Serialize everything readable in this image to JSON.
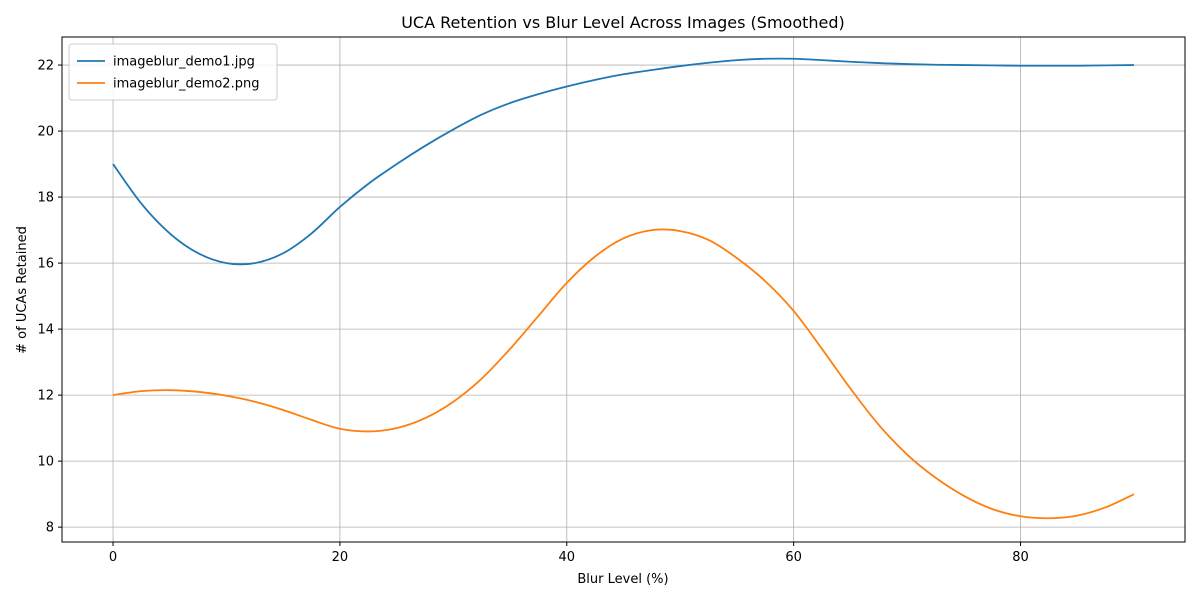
{
  "chart_data": {
    "type": "line",
    "title": "UCA Retention vs Blur Level Across Images (Smoothed)",
    "xlabel": "Blur Level (%)",
    "ylabel": "# of UCAs Retained",
    "xlim": [
      -4.5,
      94.5
    ],
    "ylim": [
      7.55,
      22.85
    ],
    "xticks": [
      0,
      20,
      40,
      60,
      80
    ],
    "yticks": [
      8,
      10,
      12,
      14,
      16,
      18,
      20,
      22
    ],
    "grid": true,
    "legend_position": "top-left",
    "series": [
      {
        "name": "imageblur_demo1.jpg",
        "color": "#1f77b4",
        "x": [
          0,
          2.5,
          5,
          7.5,
          10,
          12.5,
          15,
          17.5,
          20,
          22.5,
          25,
          27.5,
          30,
          32.5,
          35,
          37.5,
          40,
          42.5,
          45,
          47.5,
          50,
          52.5,
          55,
          57.5,
          60,
          62.5,
          65,
          67.5,
          70,
          72.5,
          75,
          77.5,
          80,
          82.5,
          85,
          87.5,
          90
        ],
        "y": [
          19.0,
          17.8,
          16.9,
          16.3,
          16.0,
          16.0,
          16.3,
          16.9,
          17.7,
          18.4,
          19.0,
          19.55,
          20.05,
          20.5,
          20.85,
          21.12,
          21.35,
          21.55,
          21.72,
          21.85,
          21.97,
          22.07,
          22.15,
          22.19,
          22.19,
          22.15,
          22.1,
          22.06,
          22.03,
          22.01,
          22.0,
          21.99,
          21.98,
          21.98,
          21.98,
          21.99,
          22.0
        ]
      },
      {
        "name": "imageblur_demo2.png",
        "color": "#ff7f0e",
        "x": [
          0,
          2.5,
          5,
          7.5,
          10,
          12.5,
          15,
          17.5,
          20,
          22.5,
          25,
          27.5,
          30,
          32.5,
          35,
          37.5,
          40,
          42.5,
          45,
          47.5,
          50,
          52.5,
          55,
          57.5,
          60,
          62.5,
          65,
          67.5,
          70,
          72.5,
          75,
          77.5,
          80,
          82.5,
          85,
          87.5,
          90
        ],
        "y": [
          12.0,
          12.12,
          12.15,
          12.1,
          11.98,
          11.8,
          11.55,
          11.25,
          10.98,
          10.9,
          11.0,
          11.3,
          11.8,
          12.5,
          13.4,
          14.4,
          15.4,
          16.2,
          16.75,
          17.0,
          16.97,
          16.7,
          16.15,
          15.45,
          14.55,
          13.4,
          12.2,
          11.1,
          10.2,
          9.5,
          8.95,
          8.55,
          8.33,
          8.27,
          8.35,
          8.6,
          9.0
        ]
      }
    ]
  }
}
